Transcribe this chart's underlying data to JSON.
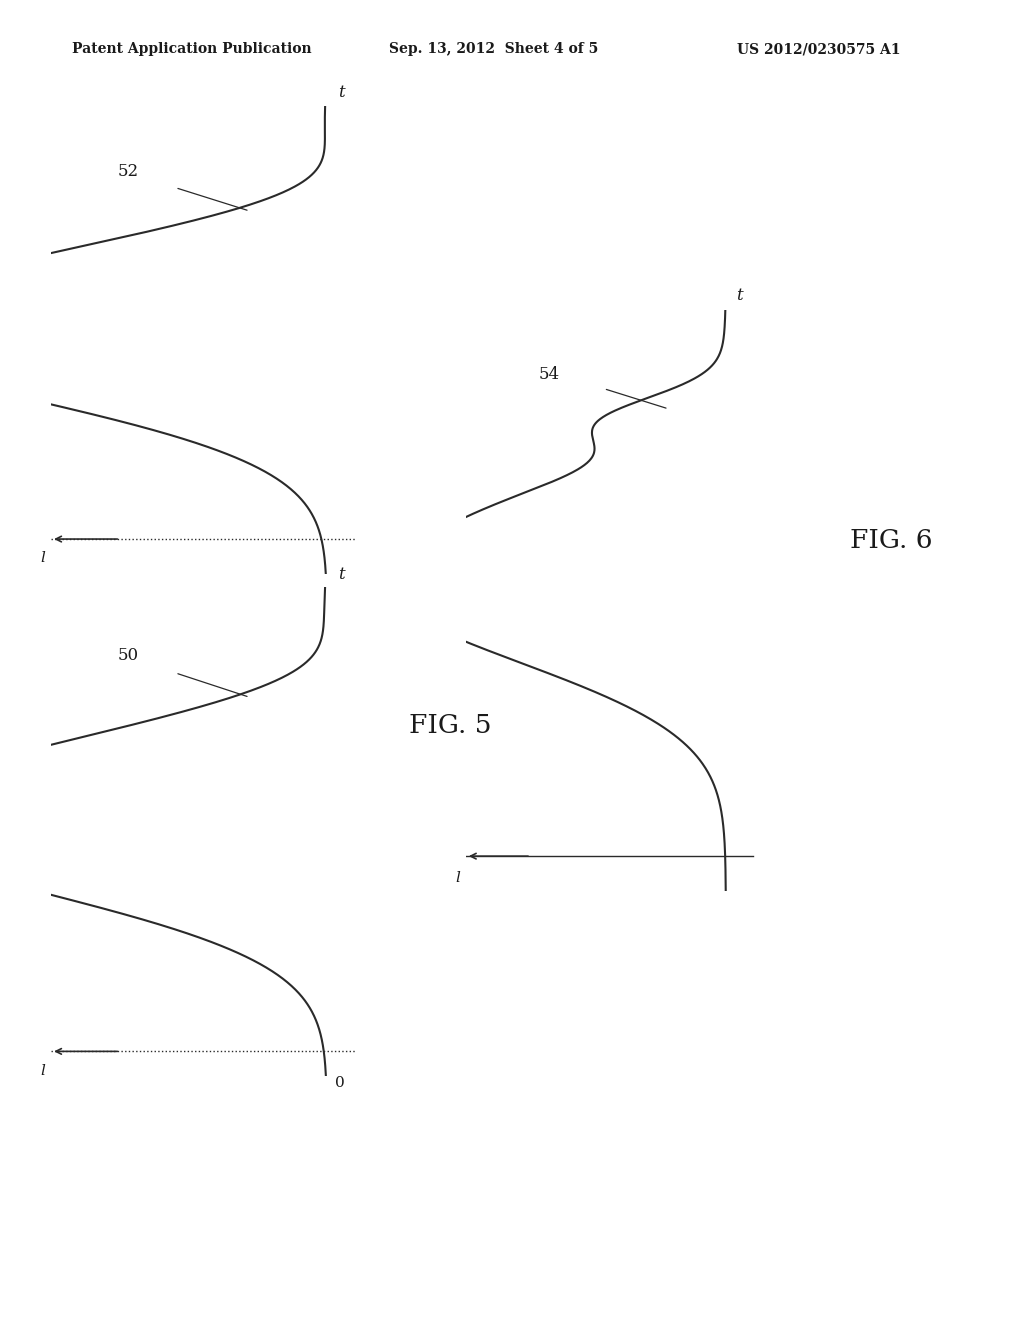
{
  "header_left": "Patent Application Publication",
  "header_mid": "Sep. 13, 2012  Sheet 4 of 5",
  "header_right": "US 2012/0230575 A1",
  "fig5_label": "FIG. 5",
  "fig6_label": "FIG. 6",
  "label_52": "52",
  "label_50": "50",
  "label_54": "54",
  "label_t": "t",
  "label_l": "l",
  "label_0": "0",
  "bg_color": "#ffffff",
  "line_color": "#2a2a2a",
  "text_color": "#1a1a1a"
}
